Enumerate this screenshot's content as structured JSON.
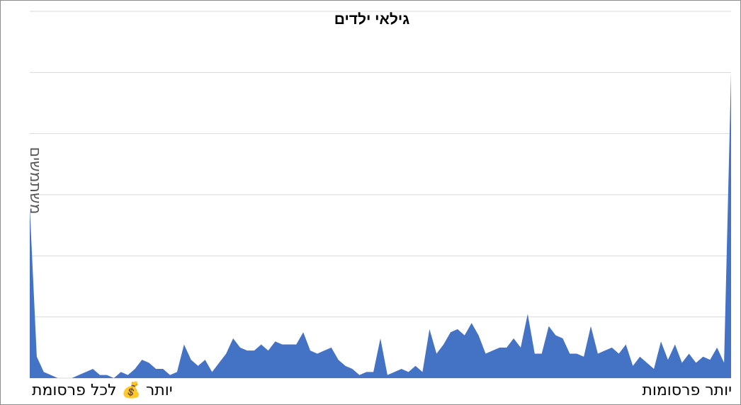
{
  "chart_data": {
    "type": "area",
    "title": "גילאי ילדים",
    "ylabel": "משתמשים",
    "xlabel_left": "יותר 💰 לכל פרסומת",
    "xlabel_right": "יותר פרסומות",
    "grid": true,
    "ylim": [
      0,
      60
    ],
    "series_color": "#4472c4",
    "values": [
      28,
      3.5,
      1,
      0.5,
      0,
      0,
      0,
      0.5,
      1,
      1.5,
      0.5,
      0.5,
      0,
      1,
      0.5,
      1.5,
      3,
      2.5,
      1.5,
      1.5,
      0.5,
      1,
      5.5,
      3,
      2,
      3,
      1,
      2.5,
      4,
      6.5,
      5,
      4.5,
      4.5,
      5.5,
      4.5,
      6,
      5.5,
      5.5,
      5.5,
      7.5,
      4.5,
      4,
      4.5,
      5,
      3,
      2,
      1.5,
      0.5,
      1,
      1,
      6.5,
      0.5,
      1,
      1.5,
      1,
      2,
      1,
      8,
      4,
      5.5,
      7.5,
      8,
      7,
      9,
      7,
      4,
      4.5,
      5,
      5,
      6.5,
      5,
      10.5,
      4,
      4,
      8.5,
      7,
      6.5,
      4,
      4,
      3.5,
      8.5,
      4,
      4.5,
      5,
      4,
      5.5,
      2,
      3.5,
      2.5,
      1.5,
      6,
      3,
      5.5,
      2.5,
      4,
      2.5,
      3.5,
      3,
      5,
      2.5,
      50
    ]
  }
}
